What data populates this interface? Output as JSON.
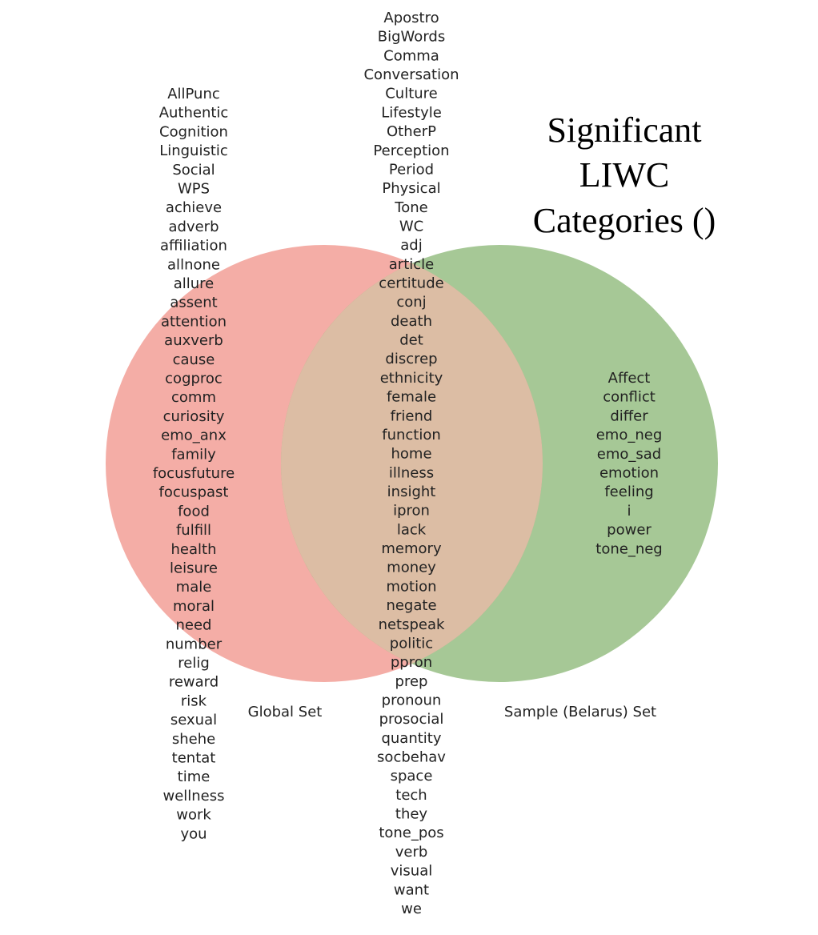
{
  "title_lines": [
    "Significant",
    "LIWC",
    "Categories ()"
  ],
  "sets": {
    "left": {
      "label": "Global Set",
      "color": "#f08a80"
    },
    "right": {
      "label": "Sample (Belarus) Set",
      "color": "#80b06a"
    },
    "overlap_color": "#dcbda4"
  },
  "words": {
    "left_only": [
      "AllPunc",
      "Authentic",
      "Cognition",
      "Linguistic",
      "Social",
      "WPS",
      "achieve",
      "adverb",
      "affiliation",
      "allnone",
      "allure",
      "assent",
      "attention",
      "auxverb",
      "cause",
      "cogproc",
      "comm",
      "curiosity",
      "emo_anx",
      "family",
      "focusfuture",
      "focuspast",
      "food",
      "fulfill",
      "health",
      "leisure",
      "male",
      "moral",
      "need",
      "number",
      "relig",
      "reward",
      "risk",
      "sexual",
      "shehe",
      "tentat",
      "time",
      "wellness",
      "work",
      "you"
    ],
    "intersection": [
      "Apostro",
      "BigWords",
      "Comma",
      "Conversation",
      "Culture",
      "Lifestyle",
      "OtherP",
      "Perception",
      "Period",
      "Physical",
      "Tone",
      "WC",
      "adj",
      "article",
      "certitude",
      "conj",
      "death",
      "det",
      "discrep",
      "ethnicity",
      "female",
      "friend",
      "function",
      "home",
      "illness",
      "insight",
      "ipron",
      "lack",
      "memory",
      "money",
      "motion",
      "negate",
      "netspeak",
      "politic",
      "ppron",
      "prep",
      "pronoun",
      "prosocial",
      "quantity",
      "socbehav",
      "space",
      "tech",
      "they",
      "tone_pos",
      "verb",
      "visual",
      "want",
      "we"
    ],
    "right_only": [
      "Affect",
      "conflict",
      "differ",
      "emo_neg",
      "emo_sad",
      "emotion",
      "feeling",
      "i",
      "power",
      "tone_neg"
    ]
  }
}
